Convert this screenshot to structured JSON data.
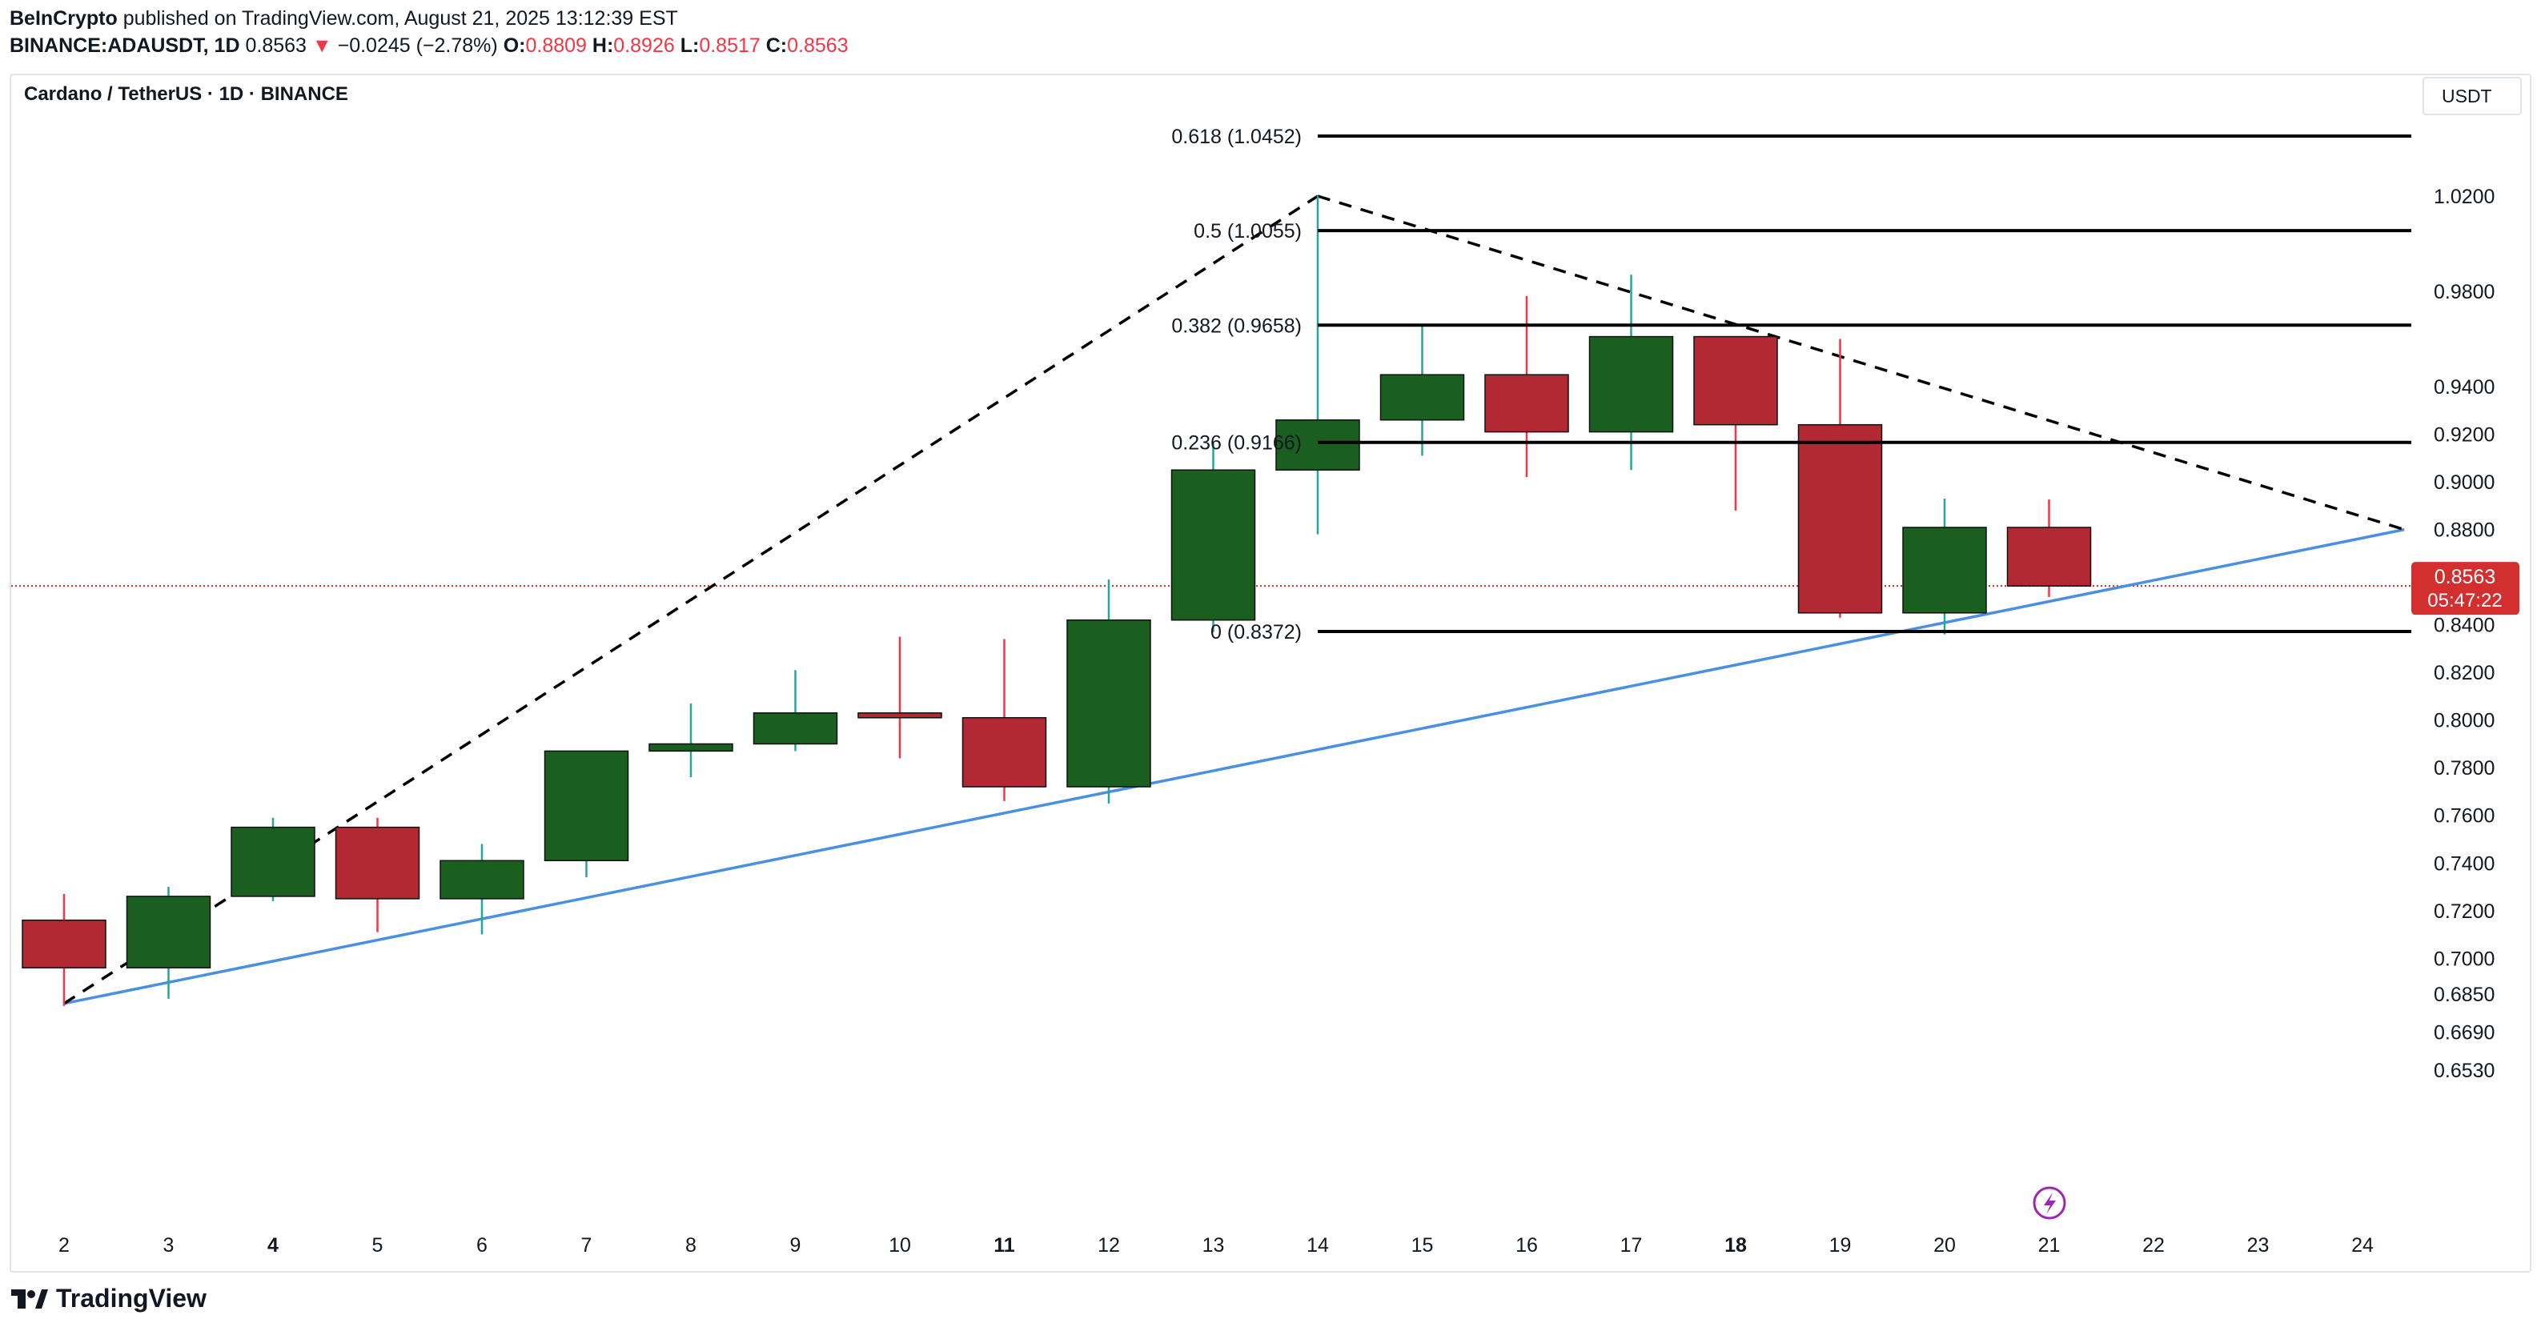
{
  "header": {
    "publisher": "BeInCrypto",
    "published_text": "published on TradingView.com, August 21, 2025 13:12:39 EST",
    "symbol_line": "BINANCE:ADAUSDT, 1D",
    "price": "0.8563",
    "change_arrow": "▼",
    "change": "−0.0245 (−2.78%)",
    "o_label": "O:",
    "o_value": "0.8809",
    "h_label": "H:",
    "h_value": "0.8926",
    "l_label": "L:",
    "l_value": "0.8517",
    "c_label": "C:",
    "c_value": "0.8563"
  },
  "chart_title": "Cardano / TetherUS · 1D · BINANCE",
  "unit_button": "USDT",
  "price_badge": {
    "price": "0.8563",
    "countdown": "05:47:22"
  },
  "footer": {
    "brand": "TradingView"
  },
  "colors": {
    "up": "#1a5e20",
    "down": "#b22833",
    "trend": "#4a90e2",
    "fib": "#000000",
    "dotted": "#c62828"
  },
  "chart_data": {
    "type": "candlestick",
    "title": "Cardano / TetherUS · 1D · BINANCE",
    "x_ticks": [
      "2",
      "3",
      "4",
      "5",
      "6",
      "7",
      "8",
      "9",
      "10",
      "11",
      "12",
      "13",
      "14",
      "15",
      "16",
      "17",
      "18",
      "19",
      "20",
      "21",
      "22",
      "23",
      "24"
    ],
    "bold_ticks": [
      "4",
      "11",
      "18"
    ],
    "y_ticks": [
      "1.0200",
      "0.9800",
      "0.9400",
      "0.9200",
      "0.9000",
      "0.8800",
      "0.8400",
      "0.8200",
      "0.8000",
      "0.7800",
      "0.7600",
      "0.7400",
      "0.7200",
      "0.7000",
      "0.6850",
      "0.6690",
      "0.6530"
    ],
    "y_range": [
      0.645,
      1.075
    ],
    "candles": [
      {
        "day": 2,
        "o": 0.716,
        "h": 0.727,
        "l": 0.68,
        "c": 0.696
      },
      {
        "day": 3,
        "o": 0.696,
        "h": 0.73,
        "l": 0.683,
        "c": 0.726
      },
      {
        "day": 4,
        "o": 0.726,
        "h": 0.759,
        "l": 0.724,
        "c": 0.755
      },
      {
        "day": 5,
        "o": 0.755,
        "h": 0.759,
        "l": 0.711,
        "c": 0.725
      },
      {
        "day": 6,
        "o": 0.725,
        "h": 0.748,
        "l": 0.71,
        "c": 0.741
      },
      {
        "day": 7,
        "o": 0.741,
        "h": 0.787,
        "l": 0.734,
        "c": 0.787
      },
      {
        "day": 8,
        "o": 0.787,
        "h": 0.807,
        "l": 0.776,
        "c": 0.79
      },
      {
        "day": 9,
        "o": 0.79,
        "h": 0.821,
        "l": 0.787,
        "c": 0.803
      },
      {
        "day": 10,
        "o": 0.803,
        "h": 0.835,
        "l": 0.784,
        "c": 0.801
      },
      {
        "day": 11,
        "o": 0.801,
        "h": 0.834,
        "l": 0.766,
        "c": 0.772
      },
      {
        "day": 12,
        "o": 0.772,
        "h": 0.859,
        "l": 0.765,
        "c": 0.842
      },
      {
        "day": 13,
        "o": 0.842,
        "h": 0.917,
        "l": 0.837,
        "c": 0.905
      },
      {
        "day": 14,
        "o": 0.905,
        "h": 1.02,
        "l": 0.878,
        "c": 0.926
      },
      {
        "day": 15,
        "o": 0.926,
        "h": 0.966,
        "l": 0.911,
        "c": 0.945
      },
      {
        "day": 16,
        "o": 0.945,
        "h": 0.978,
        "l": 0.902,
        "c": 0.921
      },
      {
        "day": 17,
        "o": 0.921,
        "h": 0.987,
        "l": 0.905,
        "c": 0.961
      },
      {
        "day": 18,
        "o": 0.961,
        "h": 0.961,
        "l": 0.888,
        "c": 0.924
      },
      {
        "day": 19,
        "o": 0.924,
        "h": 0.96,
        "l": 0.843,
        "c": 0.845
      },
      {
        "day": 20,
        "o": 0.845,
        "h": 0.893,
        "l": 0.836,
        "c": 0.8809
      },
      {
        "day": 21,
        "o": 0.8809,
        "h": 0.8926,
        "l": 0.8517,
        "c": 0.8563
      }
    ],
    "fib_levels": [
      {
        "label": "0.618 (1.0452)",
        "value": 1.0452
      },
      {
        "label": "0.5 (1.0055)",
        "value": 1.0055
      },
      {
        "label": "0.382 (0.9658)",
        "value": 0.9658
      },
      {
        "label": "0.236 (0.9166)",
        "value": 0.9166
      },
      {
        "label": "0 (0.8372)",
        "value": 0.8372
      }
    ],
    "fib_start_day": 14,
    "support_line": [
      {
        "day": 2,
        "value": 0.681
      },
      {
        "day": 24.4,
        "value": 0.88
      }
    ],
    "dashed_lines": [
      [
        {
          "day": 2,
          "value": 0.681
        },
        {
          "day": 14,
          "value": 1.02
        }
      ],
      [
        {
          "day": 14,
          "value": 1.02
        },
        {
          "day": 24.4,
          "value": 0.88
        }
      ]
    ],
    "last_price": 0.8563
  }
}
